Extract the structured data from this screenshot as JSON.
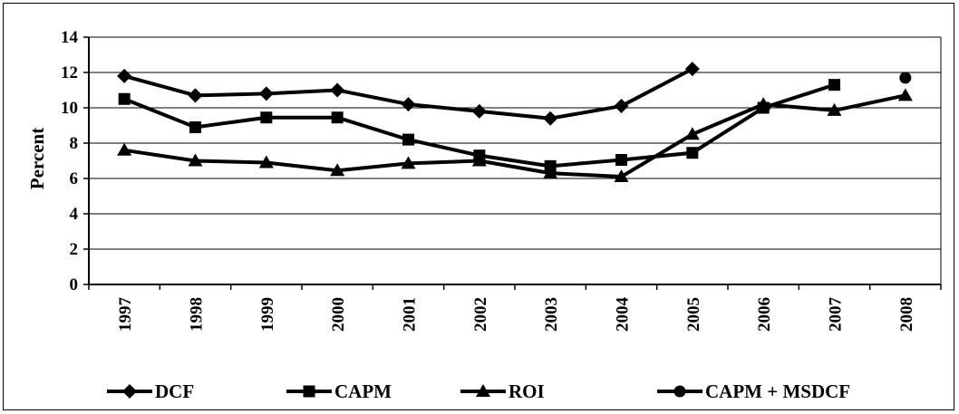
{
  "chart_data": {
    "type": "line",
    "ylabel": "Percent",
    "xlabel": "",
    "ylim": [
      0,
      14
    ],
    "y_ticks": [
      "0",
      "2",
      "4",
      "6",
      "8",
      "10",
      "12",
      "14"
    ],
    "categories": [
      "1997",
      "1998",
      "1999",
      "2000",
      "2001",
      "2002",
      "2003",
      "2004",
      "2005",
      "2006",
      "2007",
      "2008"
    ],
    "grid": "horizontal",
    "legend_position": "bottom",
    "series": [
      {
        "name": "DCF",
        "marker": "diamond",
        "values": [
          11.8,
          10.7,
          10.8,
          11.0,
          10.2,
          9.8,
          9.4,
          10.1,
          12.2,
          null,
          null,
          null
        ]
      },
      {
        "name": "CAPM",
        "marker": "square",
        "values": [
          10.5,
          8.9,
          9.45,
          9.45,
          8.2,
          7.3,
          6.7,
          7.05,
          7.45,
          10.0,
          11.3,
          null
        ]
      },
      {
        "name": "ROI",
        "marker": "triangle",
        "values": [
          7.6,
          7.0,
          6.9,
          6.45,
          6.85,
          7.0,
          6.3,
          6.1,
          8.5,
          10.2,
          9.85,
          10.7
        ]
      },
      {
        "name": "CAPM + MSDCF",
        "marker": "circle",
        "values": [
          null,
          null,
          null,
          null,
          null,
          null,
          null,
          null,
          null,
          null,
          null,
          11.7
        ]
      }
    ],
    "line_color": "#000000"
  }
}
